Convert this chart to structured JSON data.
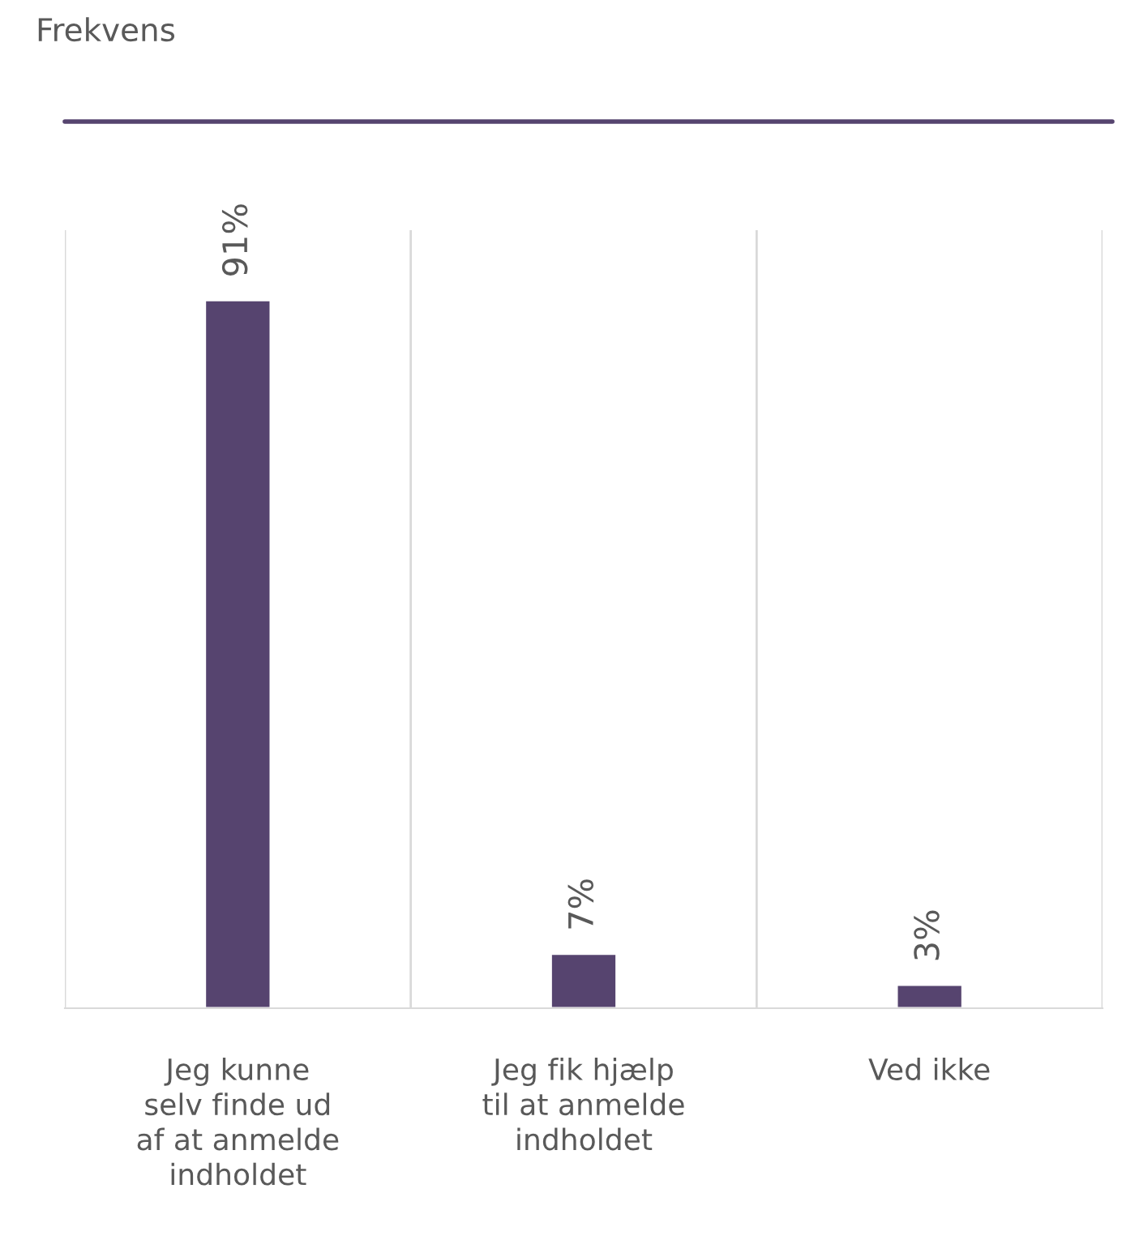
{
  "chart_data": {
    "type": "bar",
    "title": "Frekvens",
    "categories": [
      "Jeg kunne\nselv finde ud\naf at anmelde\nindholdet",
      "Jeg fik hjælp\ntil at anmelde\nindholdet",
      "Ved ikke"
    ],
    "values": [
      91,
      7,
      3
    ],
    "color": "#56446f",
    "value_labels": [
      "91%",
      "7%",
      "3%"
    ],
    "ylim": [
      0,
      100
    ],
    "tick_labels": "x",
    "grid": "x",
    "legend": false
  }
}
